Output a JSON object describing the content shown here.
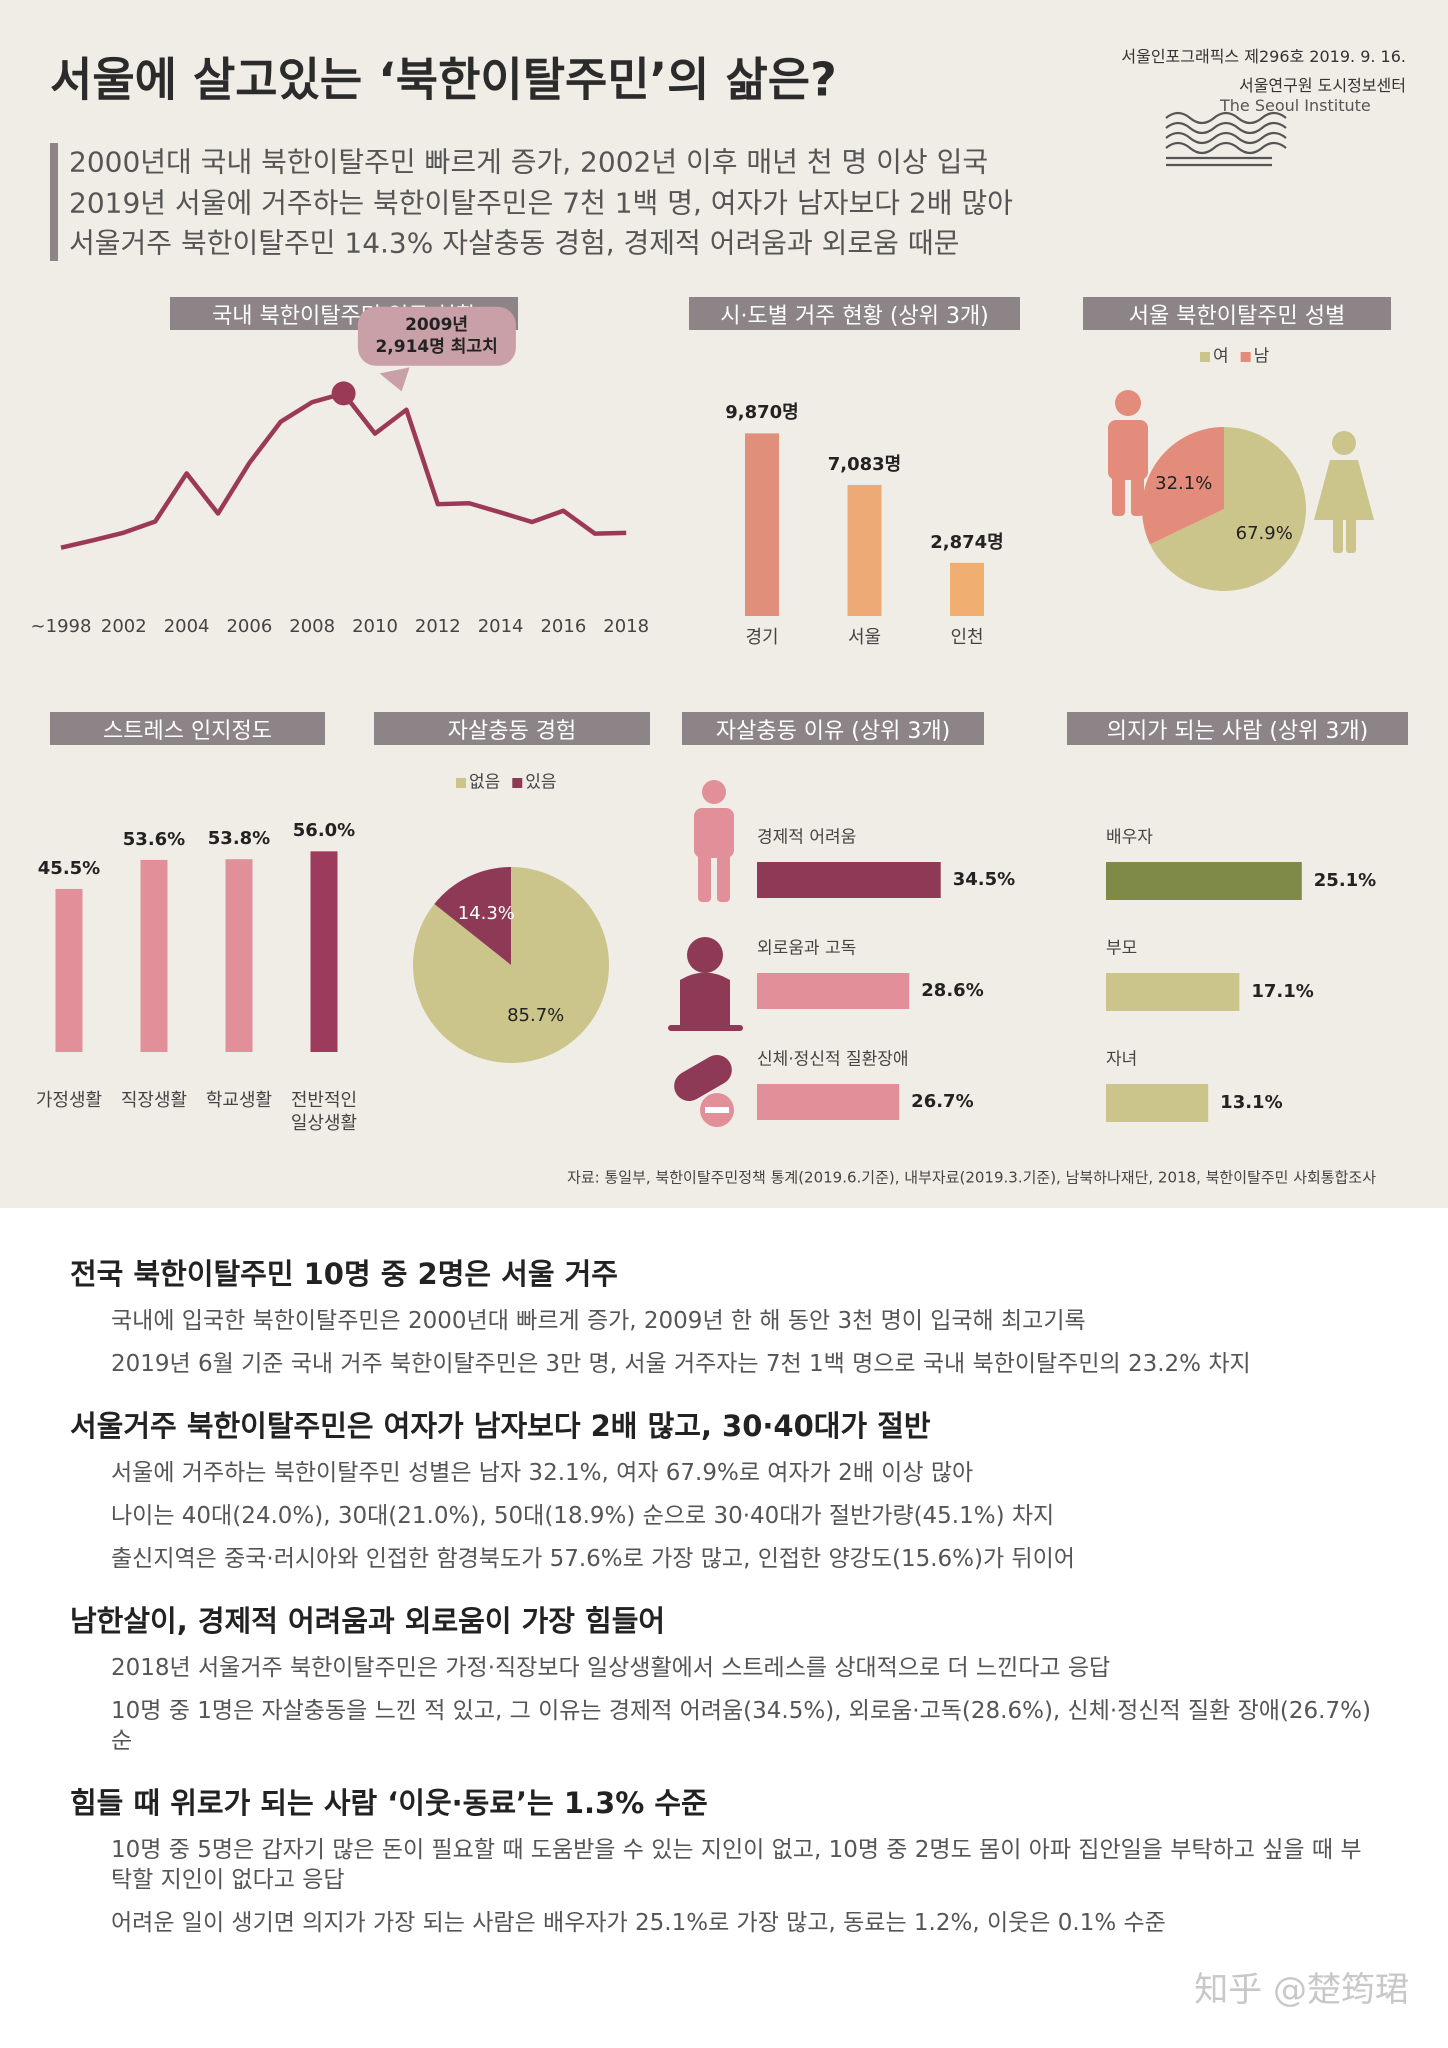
{
  "header": {
    "title": "서울에 살고있는 ‘북한이탈주민’의 삶은?",
    "issue": "서울인포그래픽스 제296호 2019. 9. 16.",
    "org": "서울연구원 도시정보센터",
    "org_en": "The Seoul Institute",
    "summary": [
      "2000년대 국내 북한이탈주민 빠르게 증가, 2002년 이후 매년 천 명 이상 입국",
      "2019년 서울에 거주하는 북한이탈주민은 7천 1백 명, 여자가 남자보다 2배 많아",
      "서울거주 북한이탈주민 14.3% 자살충동 경험, 경제적 어려움과 외로움 때문"
    ]
  },
  "chart_data": [
    {
      "type": "line",
      "title": "국내 북한이탈주민 입국 현황",
      "categories": [
        "~1998",
        null,
        "2002",
        null,
        "2004",
        null,
        "2006",
        null,
        "2008",
        null,
        "2010",
        null,
        "2012",
        null,
        "2014",
        null,
        "2016",
        null,
        "2018"
      ],
      "values": [
        947,
        1040,
        1139,
        1281,
        1894,
        1383,
        2028,
        2554,
        2803,
        2914,
        2402,
        2706,
        1502,
        1514,
        1397,
        1275,
        1418,
        1127,
        1137
      ],
      "color": "#9b3a57",
      "ylim": [
        0,
        3200
      ],
      "annotation": "2009년\n2,914명 최고치"
    },
    {
      "type": "bar",
      "title": "시·도별 거주 현황 (상위 3개)",
      "categories": [
        "경기",
        "서울",
        "인천"
      ],
      "values": [
        9870,
        7083,
        2874
      ],
      "value_labels": [
        "9,870명",
        "7,083명",
        "2,874명"
      ],
      "colors": [
        "#e08f7a",
        "#eeaa76",
        "#f0ae70"
      ],
      "ylim": [
        0,
        10000
      ]
    },
    {
      "type": "pie",
      "title": "서울 북한이탈주민 성별",
      "categories": [
        "여",
        "남"
      ],
      "values": [
        67.9,
        32.1
      ],
      "value_labels": [
        "67.9%",
        "32.1%"
      ],
      "colors": [
        "#cbc58b",
        "#e38c7b"
      ],
      "legend": true
    },
    {
      "type": "bar",
      "title": "스트레스 인지정도",
      "categories": [
        "가정생활",
        "직장생활",
        "학교생활",
        "전반적인\n일상생활"
      ],
      "values": [
        45.5,
        53.6,
        53.8,
        56.0
      ],
      "value_labels": [
        "45.5%",
        "53.6%",
        "53.8%",
        "56.0%"
      ],
      "colors": [
        "#e1909a",
        "#e1909a",
        "#e1909a",
        "#9c3b5b"
      ],
      "ylim": [
        0,
        60
      ]
    },
    {
      "type": "pie",
      "title": "자살충동 경험",
      "categories": [
        "없음",
        "있음"
      ],
      "values": [
        85.7,
        14.3
      ],
      "value_labels": [
        "85.7%",
        "14.3%"
      ],
      "colors": [
        "#cbc58b",
        "#8e3a57"
      ],
      "legend": true
    },
    {
      "type": "hbar",
      "title": "자살충동 이유 (상위 3개)",
      "categories": [
        "경제적 어려움",
        "외로움과 고독",
        "신체·정신적 질환장애"
      ],
      "values": [
        34.5,
        28.6,
        26.7
      ],
      "value_labels": [
        "34.5%",
        "28.6%",
        "26.7%"
      ],
      "colors": [
        "#8e3a57",
        "#e1909a",
        "#e1909a"
      ],
      "xlim": [
        0,
        40
      ]
    },
    {
      "type": "hbar",
      "title": "의지가 되는 사람 (상위 3개)",
      "categories": [
        "배우자",
        "부모",
        "자녀"
      ],
      "values": [
        25.1,
        17.1,
        13.1
      ],
      "value_labels": [
        "25.1%",
        "17.1%",
        "13.1%"
      ],
      "colors": [
        "#7e8a45",
        "#cbc58b",
        "#cbc58b"
      ],
      "xlim": [
        0,
        30
      ]
    }
  ],
  "source": "자료: 통일부, 북한이탈주민정책 통계(2019.6.기준), 내부자료(2019.3.기준), 남북하나재단, 2018, 북한이탈주민 사회통합조사",
  "sections": [
    {
      "heading": "전국 북한이탈주민 10명 중 2명은 서울 거주",
      "paragraphs": [
        "국내에 입국한 북한이탈주민은 2000년대 빠르게 증가, 2009년 한 해 동안 3천 명이 입국해 최고기록",
        "2019년 6월 기준 국내 거주 북한이탈주민은 3만 명, 서울 거주자는 7천 1백 명으로 국내 북한이탈주민의 23.2% 차지"
      ]
    },
    {
      "heading": "서울거주 북한이탈주민은 여자가 남자보다 2배 많고, 30·40대가 절반",
      "paragraphs": [
        "서울에 거주하는 북한이탈주민 성별은 남자 32.1%, 여자 67.9%로 여자가 2배 이상 많아",
        "나이는 40대(24.0%), 30대(21.0%), 50대(18.9%) 순으로 30·40대가 절반가량(45.1%) 차지",
        "출신지역은 중국·러시아와 인접한 함경북도가 57.6%로 가장 많고, 인접한 양강도(15.6%)가 뒤이어"
      ]
    },
    {
      "heading": "남한살이, 경제적 어려움과 외로움이 가장 힘들어",
      "paragraphs": [
        "2018년 서울거주 북한이탈주민은 가정·직장보다 일상생활에서 스트레스를 상대적으로 더 느낀다고 응답",
        "10명 중 1명은 자살충동을 느낀 적 있고, 그 이유는 경제적 어려움(34.5%), 외로움·고독(28.6%), 신체·정신적 질환 장애(26.7%) 순"
      ]
    },
    {
      "heading": "힘들 때 위로가 되는 사람 ‘이웃·동료’는 1.3% 수준",
      "paragraphs": [
        "10명 중 5명은 갑자기 많은 돈이 필요할 때 도움받을 수 있는 지인이 없고, 10명 중 2명도 몸이 아파 집안일을 부탁하고 싶을 때 부탁할 지인이 없다고 응답",
        "어려운 일이 생기면 의지가 가장 되는 사람은 배우자가 25.1%로 가장 많고, 동료는 1.2%, 이웃은 0.1% 수준"
      ]
    }
  ],
  "watermark": "知乎 @楚筠珺"
}
